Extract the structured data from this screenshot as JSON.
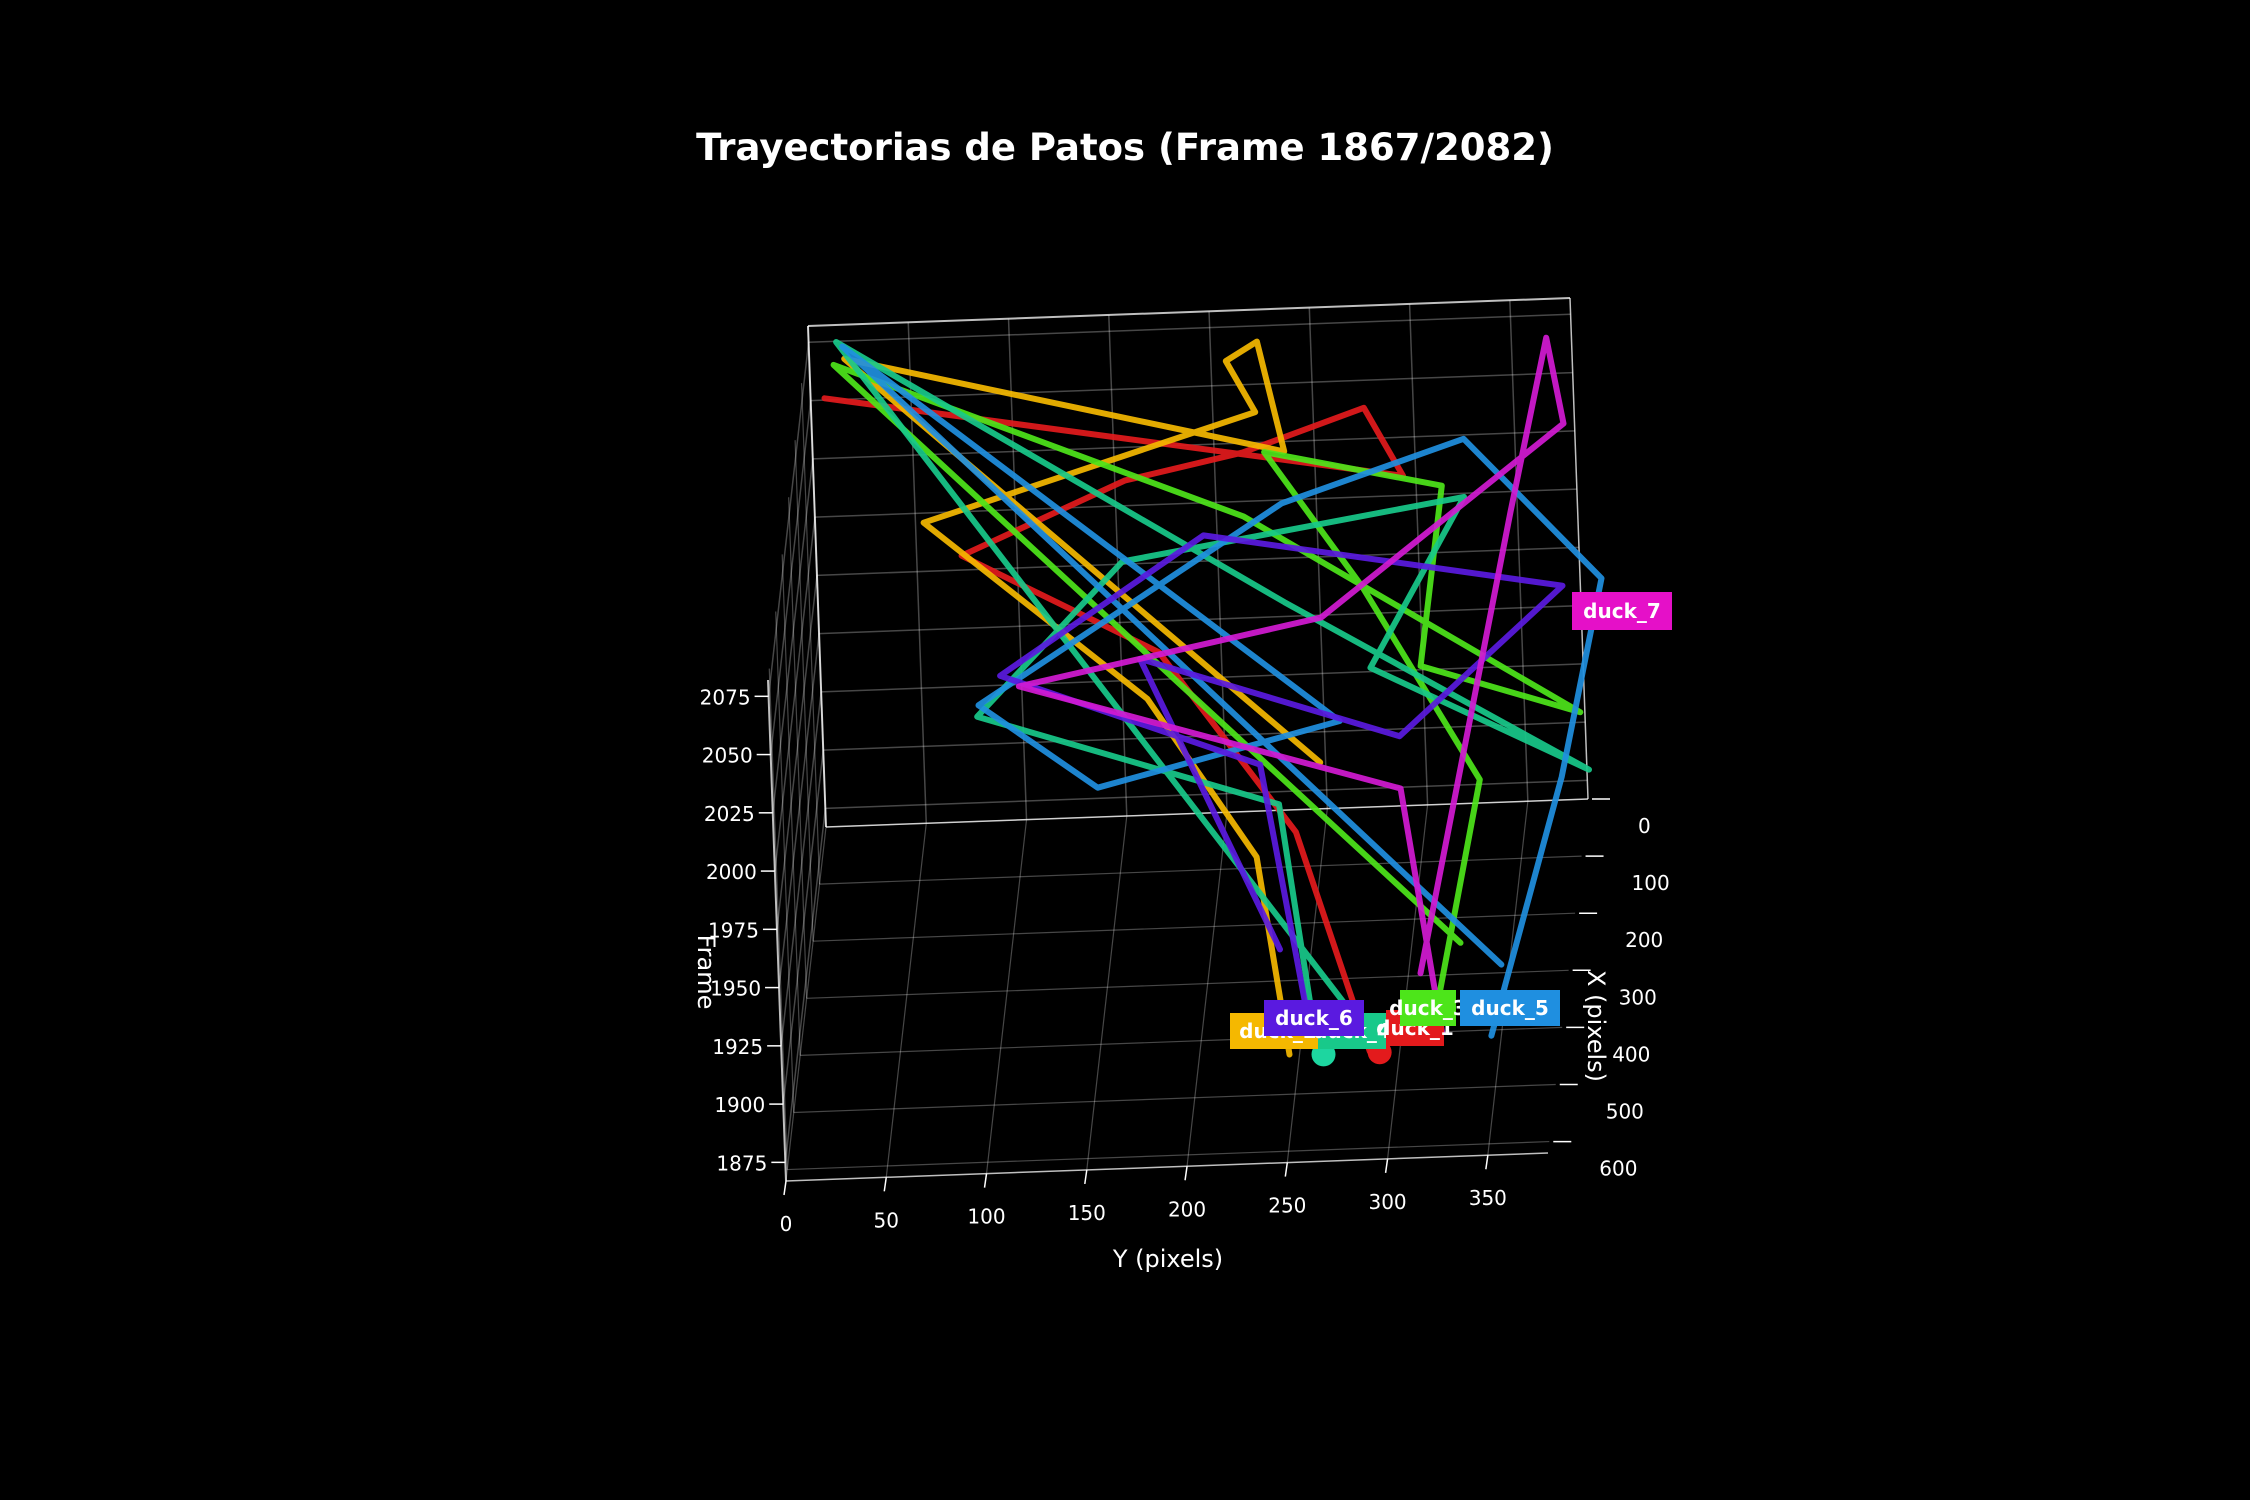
{
  "chart_data": {
    "type": "line",
    "title": "Trayectorias de Patos (Frame 1867/2082)",
    "projection": "3d",
    "x_axis": {
      "label": "Y (pixels)",
      "ticks": [
        "0",
        "50",
        "100",
        "150",
        "200",
        "250",
        "300",
        "350"
      ],
      "range": [
        0,
        380
      ]
    },
    "y_axis": {
      "label": "X (pixels)",
      "ticks": [
        "0",
        "100",
        "200",
        "300",
        "400",
        "500",
        "600"
      ],
      "range": [
        0,
        620
      ]
    },
    "z_axis": {
      "label": "Frame",
      "ticks": [
        "1875",
        "1900",
        "1925",
        "1950",
        "1975",
        "2000",
        "2025",
        "2050",
        "2075"
      ],
      "range": [
        1867,
        2082
      ]
    },
    "grid": true,
    "background": "#000000",
    "series": [
      {
        "name": "duck_1",
        "color": "#e31a1c",
        "points": [
          [
            285,
            430,
            1867
          ],
          [
            250,
            380,
            1950
          ],
          [
            180,
            260,
            2000
          ],
          [
            80,
            180,
            2025
          ],
          [
            160,
            120,
            2040
          ],
          [
            220,
            140,
            2055
          ],
          [
            280,
            110,
            2065
          ],
          [
            300,
            150,
            2045
          ],
          [
            12,
            120,
            2080
          ]
        ]
      },
      {
        "name": "duck_2",
        "color": "#f5b800",
        "points": [
          [
            245,
            430,
            1867
          ],
          [
            230,
            380,
            1940
          ],
          [
            175,
            300,
            1990
          ],
          [
            60,
            140,
            2030
          ],
          [
            225,
            90,
            2060
          ],
          [
            210,
            60,
            2075
          ],
          [
            225,
            40,
            2078
          ],
          [
            240,
            120,
            2050
          ],
          [
            20,
            60,
            2082
          ],
          [
            260,
            300,
            1960
          ]
        ]
      },
      {
        "name": "duck_3",
        "color": "#4de51a",
        "points": [
          [
            315,
            410,
            1867
          ],
          [
            340,
            320,
            1955
          ],
          [
            280,
            200,
            2010
          ],
          [
            230,
            120,
            2050
          ],
          [
            320,
            170,
            2045
          ],
          [
            310,
            260,
            1990
          ],
          [
            390,
            290,
            1975
          ],
          [
            220,
            150,
            2030
          ],
          [
            15,
            70,
            2082
          ],
          [
            330,
            380,
            1900
          ]
        ]
      },
      {
        "name": "duck_4",
        "color": "#18c98a",
        "points": [
          [
            260,
            440,
            1867
          ],
          [
            240,
            330,
            1950
          ],
          [
            90,
            300,
            1985
          ],
          [
            160,
            180,
            2020
          ],
          [
            330,
            150,
            2035
          ],
          [
            285,
            260,
            1990
          ],
          [
            395,
            330,
            1960
          ],
          [
            240,
            180,
            2000
          ],
          [
            15,
            30,
            2082
          ],
          [
            275,
            410,
            1880
          ]
        ]
      },
      {
        "name": "duck_5",
        "color": "#1f8fe0",
        "points": [
          [
            345,
            410,
            1867
          ],
          [
            380,
            300,
            1950
          ],
          [
            400,
            220,
            2015
          ],
          [
            330,
            130,
            2055
          ],
          [
            240,
            170,
            2040
          ],
          [
            90,
            280,
            1985
          ],
          [
            150,
            330,
            1960
          ],
          [
            270,
            290,
            1975
          ],
          [
            18,
            30,
            2080
          ],
          [
            350,
            380,
            1890
          ]
        ]
      },
      {
        "name": "duck_6",
        "color": "#5a1ae0",
        "points": [
          [
            255,
            400,
            1867
          ],
          [
            230,
            300,
            1960
          ],
          [
            100,
            250,
            1990
          ],
          [
            200,
            160,
            2025
          ],
          [
            380,
            210,
            2010
          ],
          [
            300,
            300,
            1970
          ],
          [
            170,
            250,
            1995
          ],
          [
            240,
            380,
            1900
          ]
        ]
      },
      {
        "name": "duck_7",
        "color": "#d21ad2",
        "points": [
          [
            320,
            400,
            1867
          ],
          [
            300,
            310,
            1950
          ],
          [
            110,
            270,
            1990
          ],
          [
            260,
            230,
            2005
          ],
          [
            380,
            130,
            2060
          ],
          [
            370,
            60,
            2080
          ],
          [
            355,
            200,
            2040
          ],
          [
            310,
            390,
            1890
          ]
        ]
      }
    ],
    "end_markers": [
      {
        "color": "#1dd6a0",
        "at": [
          262,
          432,
          1867
        ]
      },
      {
        "color": "#e31a1c",
        "at": [
          290,
          432,
          1867
        ]
      }
    ],
    "labels": [
      {
        "text": "duck_2",
        "color": "#f5b800"
      },
      {
        "text": "duck_4",
        "color": "#18c98a"
      },
      {
        "text": "duck_1",
        "color": "#e31a1c"
      },
      {
        "text": "duck_6",
        "color": "#5a1ae0"
      },
      {
        "text": "duck_3",
        "color": "#4de51a"
      },
      {
        "text": "duck_5",
        "color": "#1f8fe0"
      },
      {
        "text": "duck_7",
        "color": "#e510c8"
      }
    ]
  }
}
